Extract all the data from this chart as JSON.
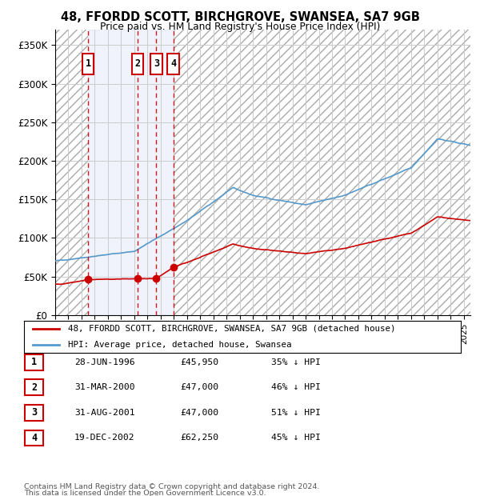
{
  "title1": "48, FFORDD SCOTT, BIRCHGROVE, SWANSEA, SA7 9GB",
  "title2": "Price paid vs. HM Land Registry's House Price Index (HPI)",
  "legend_label_red": "48, FFORDD SCOTT, BIRCHGROVE, SWANSEA, SA7 9GB (detached house)",
  "legend_label_blue": "HPI: Average price, detached house, Swansea",
  "footer1": "Contains HM Land Registry data © Crown copyright and database right 2024.",
  "footer2": "This data is licensed under the Open Government Licence v3.0.",
  "transactions": [
    {
      "num": 1,
      "date": "28-JUN-1996",
      "price": 45950,
      "hpi_pct": "35% ↓ HPI",
      "x": 1996.49
    },
    {
      "num": 2,
      "date": "31-MAR-2000",
      "price": 47000,
      "hpi_pct": "46% ↓ HPI",
      "x": 2000.25
    },
    {
      "num": 3,
      "date": "31-AUG-2001",
      "price": 47000,
      "hpi_pct": "51% ↓ HPI",
      "x": 2001.67
    },
    {
      "num": 4,
      "date": "19-DEC-2002",
      "price": 62250,
      "hpi_pct": "45% ↓ HPI",
      "x": 2002.97
    }
  ],
  "red_color": "#cc0000",
  "blue_color": "#5599cc",
  "hatch_color": "#aaaaaa",
  "grid_color": "#cccccc",
  "bg_color": "#ffffff",
  "ylim": [
    0,
    370000
  ],
  "xlim_start": 1994.0,
  "xlim_end": 2025.5
}
